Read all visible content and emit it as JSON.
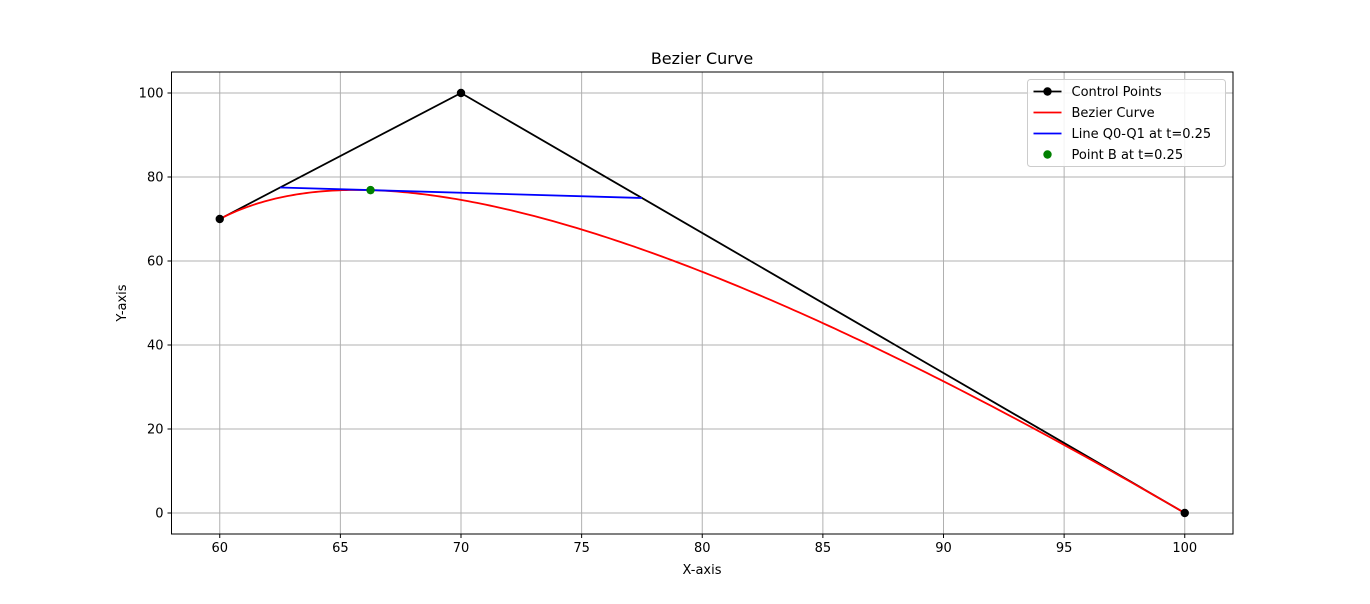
{
  "chart_data": {
    "type": "line",
    "title": "Bezier Curve",
    "xlabel": "X-axis",
    "ylabel": "Y-axis",
    "xlim": [
      58,
      102
    ],
    "ylim": [
      -5,
      105
    ],
    "xticks": [
      60,
      65,
      70,
      75,
      80,
      85,
      90,
      95,
      100
    ],
    "yticks": [
      0,
      20,
      40,
      60,
      80,
      100
    ],
    "grid": true,
    "legend_position": "top-right",
    "bezier_t": 0.25,
    "control_points": {
      "x": [
        60,
        70,
        100
      ],
      "y": [
        70,
        100,
        0
      ]
    },
    "series": [
      {
        "name": "Control Points",
        "kind": "line-with-markers",
        "color": "#000000",
        "x": [
          60,
          70,
          100
        ],
        "y": [
          70,
          100,
          0
        ]
      },
      {
        "name": "Bezier Curve",
        "kind": "quadratic-bezier",
        "color": "#ff0000"
      },
      {
        "name": "Line Q0-Q1 at t=0.25",
        "kind": "line",
        "color": "#0000ff",
        "x": [
          62.5,
          77.5
        ],
        "y": [
          77.5,
          75
        ]
      },
      {
        "name": "Point B at t=0.25",
        "kind": "point",
        "color": "#008000",
        "x": [
          66.25
        ],
        "y": [
          76.875
        ]
      }
    ]
  }
}
